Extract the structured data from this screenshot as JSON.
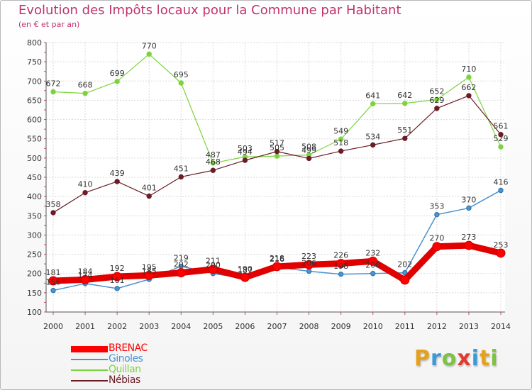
{
  "header": {
    "title": "Evolution des Impôts locaux pour la Commune par Habitant",
    "subtitle": "(en € et par an)"
  },
  "chart_data": {
    "type": "line",
    "title": "Evolution des Impôts locaux pour la Commune par Habitant",
    "subtitle": "(en € et par an)",
    "xlabel": "",
    "ylabel": "",
    "x": [
      "2000",
      "2001",
      "2002",
      "2003",
      "2004",
      "2005",
      "2006",
      "2007",
      "2008",
      "2009",
      "2010",
      "2011",
      "2012",
      "2013",
      "2014"
    ],
    "ylim": [
      100,
      800
    ],
    "yticks": [
      100,
      150,
      200,
      250,
      300,
      350,
      400,
      450,
      500,
      550,
      600,
      650,
      700,
      750,
      800
    ],
    "grid": true,
    "legend_position": "bottom-left",
    "series": [
      {
        "name": "BRENAC",
        "color": "#ff0000",
        "values": [
          181,
          184,
          192,
          195,
          202,
          211,
          190,
          218,
          223,
          226,
          232,
          183,
          270,
          273,
          253
        ],
        "labels": [
          "181",
          "184",
          "192",
          "195",
          "202",
          "211",
          "190",
          "218",
          "223",
          "226",
          "232",
          "",
          "270",
          "273",
          "253"
        ]
      },
      {
        "name": "Ginoles",
        "color": "#4a94d0",
        "values": [
          156,
          174,
          161,
          185,
          219,
          200,
          187,
          216,
          206,
          198,
          200,
          202,
          353,
          370,
          416
        ],
        "labels": [
          "156",
          "174",
          "161",
          "185",
          "219",
          "200",
          "187",
          "216",
          "206",
          "198",
          "200",
          "202",
          "353",
          "370",
          "416"
        ]
      },
      {
        "name": "Quillan",
        "color": "#7dd33e",
        "values": [
          672,
          668,
          699,
          770,
          695,
          487,
          503,
          505,
          508,
          549,
          641,
          642,
          652,
          710,
          529
        ],
        "labels": [
          "672",
          "668",
          "699",
          "770",
          "695",
          "487",
          "503",
          "505",
          "508",
          "549",
          "641",
          "642",
          "652",
          "710",
          "529"
        ]
      },
      {
        "name": "Nébias",
        "color": "#6b1c24",
        "values": [
          358,
          410,
          439,
          401,
          451,
          468,
          494,
          517,
          499,
          518,
          534,
          551,
          629,
          662,
          561
        ],
        "labels": [
          "358",
          "410",
          "439",
          "401",
          "451",
          "468",
          "494",
          "517",
          "499",
          "518",
          "534",
          "551",
          "629",
          "662",
          "561"
        ]
      }
    ]
  },
  "logo": {
    "letters": [
      "P",
      "r",
      "o",
      "x",
      "i",
      "t",
      "i"
    ],
    "colors": [
      "#e5a11c",
      "#3a9ad9",
      "#7cc243",
      "#e23b2e",
      "#3a9ad9",
      "#e5a11c",
      "#7cc243"
    ]
  }
}
